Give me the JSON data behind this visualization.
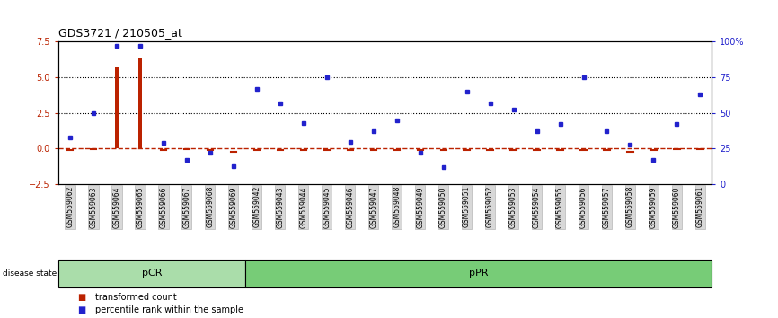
{
  "title": "GDS3721 / 210505_at",
  "samples": [
    "GSM559062",
    "GSM559063",
    "GSM559064",
    "GSM559065",
    "GSM559066",
    "GSM559067",
    "GSM559068",
    "GSM559069",
    "GSM559042",
    "GSM559043",
    "GSM559044",
    "GSM559045",
    "GSM559046",
    "GSM559047",
    "GSM559048",
    "GSM559049",
    "GSM559050",
    "GSM559051",
    "GSM559052",
    "GSM559053",
    "GSM559054",
    "GSM559055",
    "GSM559056",
    "GSM559057",
    "GSM559058",
    "GSM559059",
    "GSM559060",
    "GSM559061"
  ],
  "red_values": [
    -0.08,
    -0.05,
    5.7,
    6.3,
    -0.1,
    -0.05,
    -0.07,
    -0.25,
    -0.08,
    -0.1,
    -0.12,
    -0.08,
    -0.08,
    -0.1,
    -0.1,
    -0.08,
    -0.09,
    -0.08,
    -0.08,
    -0.08,
    -0.1,
    -0.08,
    -0.08,
    -0.1,
    -0.25,
    -0.08,
    -0.05,
    -0.05
  ],
  "blue_values": [
    33,
    50,
    97,
    97,
    29,
    17,
    22,
    13,
    67,
    57,
    43,
    75,
    30,
    37,
    45,
    22,
    12,
    65,
    57,
    52,
    37,
    42,
    75,
    37,
    28,
    17,
    42,
    63
  ],
  "pCR_count": 8,
  "pPR_count": 20,
  "red_color": "#bb2200",
  "blue_color": "#2222cc",
  "pCR_color": "#aaddaa",
  "pPR_color": "#77cc77",
  "red_ylim": [
    -2.5,
    7.5
  ],
  "blue_ylim": [
    0,
    100
  ],
  "red_yticks": [
    -2.5,
    0.0,
    2.5,
    5.0,
    7.5
  ],
  "blue_yticks": [
    0,
    25,
    50,
    75,
    100
  ],
  "hline_y_red": [
    2.5,
    5.0
  ]
}
